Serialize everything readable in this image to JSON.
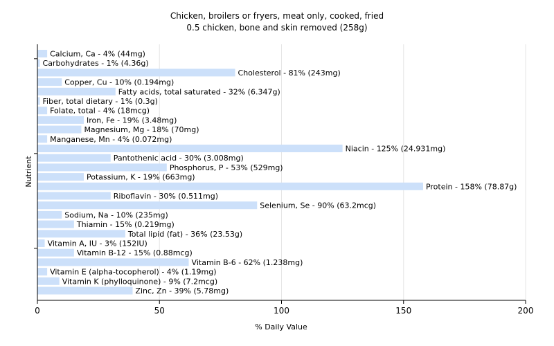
{
  "chart_data": {
    "type": "bar",
    "orientation": "horizontal",
    "title": "Chicken, broilers or fryers, meat only, cooked, fried",
    "subtitle": "0.5 chicken, bone and skin removed (258g)",
    "xlabel": "% Daily Value",
    "ylabel": "Nutrient",
    "xlim": [
      0,
      200
    ],
    "xticks": [
      0,
      50,
      100,
      150,
      200
    ],
    "grid": true,
    "bar_color": "#cce0fa",
    "categories": [
      "Calcium, Ca",
      "Carbohydrates",
      "Cholesterol",
      "Copper, Cu",
      "Fatty acids, total saturated",
      "Fiber, total dietary",
      "Folate, total",
      "Iron, Fe",
      "Magnesium, Mg",
      "Manganese, Mn",
      "Niacin",
      "Pantothenic acid",
      "Phosphorus, P",
      "Potassium, K",
      "Protein",
      "Riboflavin",
      "Selenium, Se",
      "Sodium, Na",
      "Thiamin",
      "Total lipid (fat)",
      "Vitamin A, IU",
      "Vitamin B-12",
      "Vitamin B-6",
      "Vitamin E (alpha-tocopherol)",
      "Vitamin K (phylloquinone)",
      "Zinc, Zn"
    ],
    "values": [
      4,
      1,
      81,
      10,
      32,
      1,
      4,
      19,
      18,
      4,
      125,
      30,
      53,
      19,
      158,
      30,
      90,
      10,
      15,
      36,
      3,
      15,
      62,
      4,
      9,
      39
    ],
    "labels": [
      "Calcium, Ca - 4% (44mg)",
      "Carbohydrates - 1% (4.36g)",
      "Cholesterol - 81% (243mg)",
      "Copper, Cu - 10% (0.194mg)",
      "Fatty acids, total saturated - 32% (6.347g)",
      "Fiber, total dietary - 1% (0.3g)",
      "Folate, total - 4% (18mcg)",
      "Iron, Fe - 19% (3.48mg)",
      "Magnesium, Mg - 18% (70mg)",
      "Manganese, Mn - 4% (0.072mg)",
      "Niacin - 125% (24.931mg)",
      "Pantothenic acid - 30% (3.008mg)",
      "Phosphorus, P - 53% (529mg)",
      "Potassium, K - 19% (663mg)",
      "Protein - 158% (78.87g)",
      "Riboflavin - 30% (0.511mg)",
      "Selenium, Se - 90% (63.2mcg)",
      "Sodium, Na - 10% (235mg)",
      "Thiamin - 15% (0.219mg)",
      "Total lipid (fat) - 36% (23.53g)",
      "Vitamin A, IU - 3% (152IU)",
      "Vitamin B-12 - 15% (0.88mcg)",
      "Vitamin B-6 - 62% (1.238mg)",
      "Vitamin E (alpha-tocopherol) - 4% (1.19mg)",
      "Vitamin K (phylloquinone) - 9% (7.2mcg)",
      "Zinc, Zn - 39% (5.78mg)"
    ]
  }
}
